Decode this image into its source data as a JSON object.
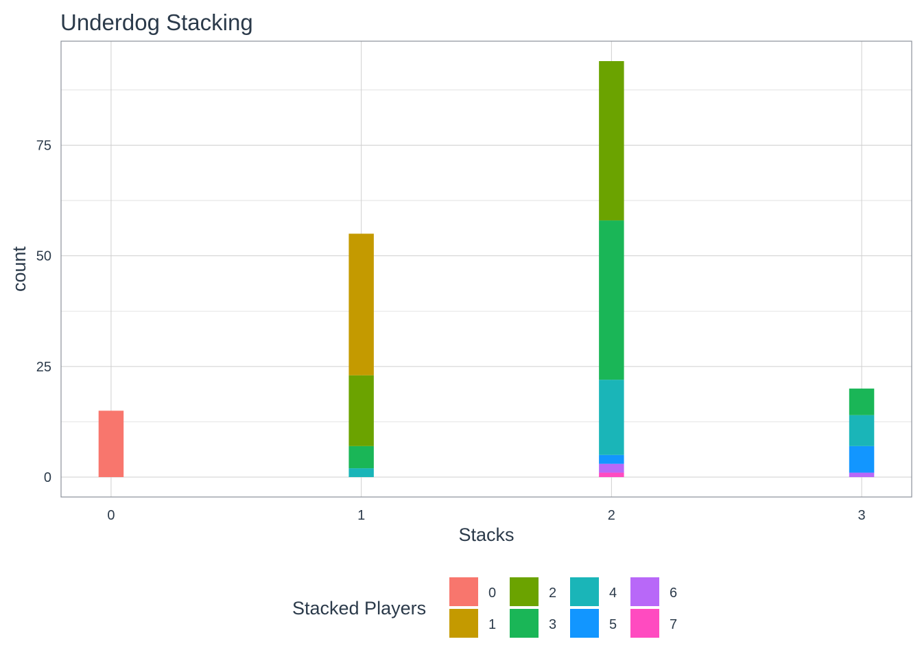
{
  "chart_data": {
    "type": "bar",
    "stacked": true,
    "title": "Underdog Stacking",
    "xlabel": "Stacks",
    "ylabel": "count",
    "x_ticks": [
      "0",
      "1",
      "2",
      "3"
    ],
    "y_ticks": [
      "0",
      "25",
      "50",
      "75"
    ],
    "ylim": [
      -4.5,
      98.5
    ],
    "xlim": [
      -0.2,
      3.2
    ],
    "grid": true,
    "legend": {
      "title": "Stacked Players",
      "placement": "bottom",
      "entries": [
        {
          "label": "0",
          "color": "#F8766D"
        },
        {
          "label": "1",
          "color": "#C49A00"
        },
        {
          "label": "2",
          "color": "#6BA300"
        },
        {
          "label": "3",
          "color": "#1AB657"
        },
        {
          "label": "4",
          "color": "#1AB5B8"
        },
        {
          "label": "5",
          "color": "#1296FF"
        },
        {
          "label": "6",
          "color": "#B868F8"
        },
        {
          "label": "7",
          "color": "#FF4BC0"
        }
      ]
    },
    "categories": [
      "0",
      "1",
      "2",
      "3"
    ],
    "series": [
      {
        "name": "0",
        "color": "#F8766D",
        "values": [
          15,
          0,
          0,
          0
        ]
      },
      {
        "name": "1",
        "color": "#C49A00",
        "values": [
          0,
          32,
          0,
          0
        ]
      },
      {
        "name": "2",
        "color": "#6BA300",
        "values": [
          0,
          16,
          36,
          0
        ]
      },
      {
        "name": "3",
        "color": "#1AB657",
        "values": [
          0,
          5,
          36,
          6
        ]
      },
      {
        "name": "4",
        "color": "#1AB5B8",
        "values": [
          0,
          2,
          17,
          7
        ]
      },
      {
        "name": "5",
        "color": "#1296FF",
        "values": [
          0,
          0,
          2,
          6
        ]
      },
      {
        "name": "6",
        "color": "#B868F8",
        "values": [
          0,
          0,
          2,
          1
        ]
      },
      {
        "name": "7",
        "color": "#FF4BC0",
        "values": [
          0,
          0,
          1,
          0
        ]
      }
    ]
  }
}
